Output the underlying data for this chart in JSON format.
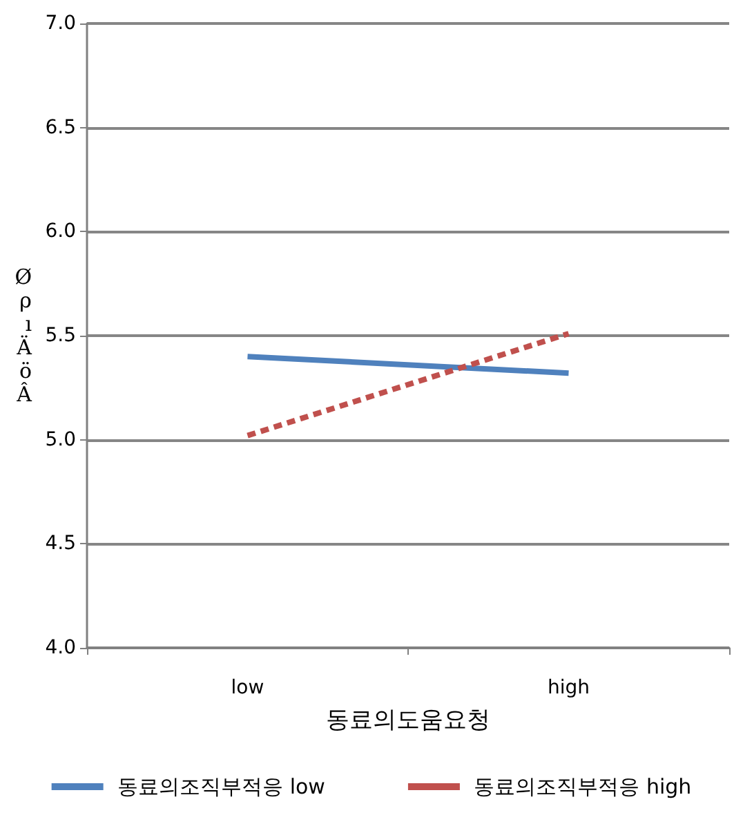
{
  "chart_data": {
    "type": "line",
    "xlabel": "동료의도움요청",
    "ylabel": "ØρıÄöÂ",
    "categories": [
      "low",
      "high"
    ],
    "series": [
      {
        "name": "동료의조직부적응 low",
        "color": "#4f81bd",
        "values": [
          5.4,
          5.32
        ],
        "line_style": "solid"
      },
      {
        "name": "동료의조직부적응 high",
        "color": "#c0504d",
        "values": [
          5.02,
          5.51
        ],
        "line_style": "dashed"
      }
    ],
    "ylim": [
      4.0,
      7.0
    ],
    "yticks": [
      {
        "value": 4,
        "label": "4.0"
      },
      {
        "value": 4.5,
        "label": "4.5"
      },
      {
        "value": 5,
        "label": "5.0"
      },
      {
        "value": 5.5,
        "label": "5.5"
      },
      {
        "value": 6,
        "label": "6.0"
      },
      {
        "value": 6.5,
        "label": "6.5"
      },
      {
        "value": 7,
        "label": "7.0"
      }
    ],
    "grid": "y",
    "legend": "bottom",
    "marker": "none"
  }
}
